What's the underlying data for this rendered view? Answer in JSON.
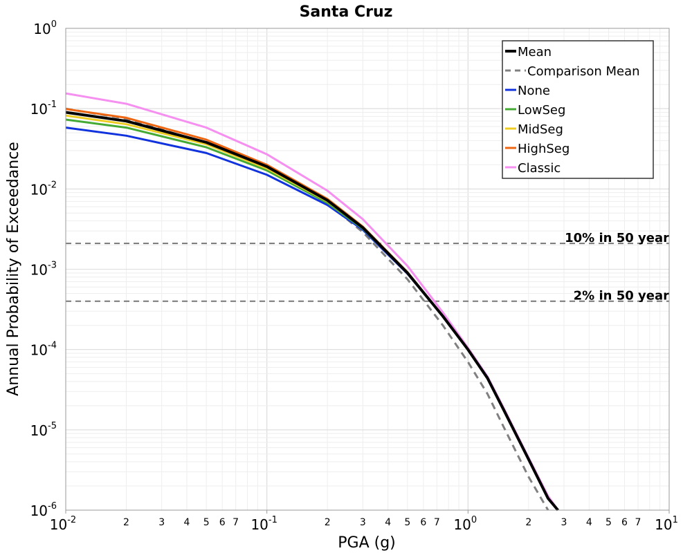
{
  "chart_data": {
    "type": "line",
    "title": "Santa Cruz",
    "xlabel": "PGA (g)",
    "ylabel": "Annual Probability of Exceedance",
    "xscale": "log",
    "yscale": "log",
    "xlim": [
      0.01,
      10
    ],
    "ylim": [
      1e-06,
      1
    ],
    "grid": true,
    "legend_position": "top-right",
    "x_major_ticks": [
      {
        "base": "10",
        "exp": "-2",
        "value": 0.01
      },
      {
        "base": "10",
        "exp": "-1",
        "value": 0.1
      },
      {
        "base": "10",
        "exp": "0",
        "value": 1
      },
      {
        "base": "10",
        "exp": "1",
        "value": 10
      }
    ],
    "x_minor_ticks": [
      {
        "label": "2",
        "value": 0.02
      },
      {
        "label": "3",
        "value": 0.03
      },
      {
        "label": "4",
        "value": 0.04
      },
      {
        "label": "5",
        "value": 0.05
      },
      {
        "label": "6",
        "value": 0.06
      },
      {
        "label": "7",
        "value": 0.07
      },
      {
        "label": "2",
        "value": 0.2
      },
      {
        "label": "3",
        "value": 0.3
      },
      {
        "label": "4",
        "value": 0.4
      },
      {
        "label": "5",
        "value": 0.5
      },
      {
        "label": "6",
        "value": 0.6
      },
      {
        "label": "7",
        "value": 0.7
      },
      {
        "label": "2",
        "value": 2
      },
      {
        "label": "3",
        "value": 3
      },
      {
        "label": "4",
        "value": 4
      },
      {
        "label": "5",
        "value": 5
      },
      {
        "label": "6",
        "value": 6
      },
      {
        "label": "7",
        "value": 7
      }
    ],
    "y_major_ticks": [
      {
        "base": "10",
        "exp": "0",
        "value": 1
      },
      {
        "base": "10",
        "exp": "-1",
        "value": 0.1
      },
      {
        "base": "10",
        "exp": "-2",
        "value": 0.01
      },
      {
        "base": "10",
        "exp": "-3",
        "value": 0.001
      },
      {
        "base": "10",
        "exp": "-4",
        "value": 0.0001
      },
      {
        "base": "10",
        "exp": "-5",
        "value": 1e-05
      },
      {
        "base": "10",
        "exp": "-6",
        "value": 1e-06
      }
    ],
    "reference_lines": [
      {
        "label": "10% in 50 year",
        "y": 0.0021,
        "color": "#777777"
      },
      {
        "label": "2% in 50 year",
        "y": 0.0004,
        "color": "#777777"
      }
    ],
    "series": [
      {
        "name": "Mean",
        "color": "#000000",
        "width": 4,
        "dash": "",
        "x": [
          0.01,
          0.02,
          0.05,
          0.1,
          0.2,
          0.3,
          0.5,
          0.75,
          1.0,
          1.25,
          1.5,
          2.0,
          2.5,
          2.8
        ],
        "y": [
          0.09,
          0.07,
          0.038,
          0.019,
          0.0072,
          0.0033,
          0.0009,
          0.00026,
          0.0001,
          4.4e-05,
          1.8e-05,
          4.3e-06,
          1.4e-06,
          1e-06
        ]
      },
      {
        "name": "Comparison Mean",
        "color": "#808080",
        "width": 3,
        "dash": "10,7",
        "x": [
          0.01,
          0.02,
          0.05,
          0.1,
          0.2,
          0.3,
          0.5,
          0.75,
          1.0,
          1.25,
          1.5,
          2.0,
          2.5
        ],
        "y": [
          0.1,
          0.075,
          0.037,
          0.018,
          0.0066,
          0.0029,
          0.00075,
          0.0002,
          7e-05,
          2.8e-05,
          1.1e-05,
          2.6e-06,
          1e-06
        ]
      },
      {
        "name": "None",
        "color": "#1133dd",
        "width": 3,
        "dash": "",
        "x": [
          0.01,
          0.02,
          0.05,
          0.1,
          0.2,
          0.3,
          0.5,
          0.75,
          1.0,
          1.25,
          1.5,
          2.0,
          2.5,
          2.8
        ],
        "y": [
          0.058,
          0.046,
          0.028,
          0.015,
          0.0063,
          0.0031,
          0.00088,
          0.00026,
          0.0001,
          4.5e-05,
          1.8e-05,
          4.4e-06,
          1.4e-06,
          1e-06
        ]
      },
      {
        "name": "LowSeg",
        "color": "#44aa33",
        "width": 3,
        "dash": "",
        "x": [
          0.01,
          0.02,
          0.05,
          0.1,
          0.2,
          0.3,
          0.5,
          0.75,
          1.0,
          1.25,
          1.5,
          2.0,
          2.5,
          2.8
        ],
        "y": [
          0.073,
          0.058,
          0.033,
          0.017,
          0.0067,
          0.0032,
          0.0009,
          0.00026,
          0.0001,
          4.4e-05,
          1.8e-05,
          4.3e-06,
          1.4e-06,
          1e-06
        ]
      },
      {
        "name": "MidSeg",
        "color": "#eecc22",
        "width": 3,
        "dash": "",
        "x": [
          0.01,
          0.02,
          0.05,
          0.1,
          0.2,
          0.3,
          0.5,
          0.75,
          1.0,
          1.25,
          1.5,
          2.0,
          2.5,
          2.8
        ],
        "y": [
          0.082,
          0.064,
          0.036,
          0.018,
          0.007,
          0.0033,
          0.0009,
          0.00026,
          0.0001,
          4.4e-05,
          1.8e-05,
          4.3e-06,
          1.4e-06,
          1e-06
        ]
      },
      {
        "name": "HighSeg",
        "color": "#ee6611",
        "width": 3,
        "dash": "",
        "x": [
          0.01,
          0.02,
          0.05,
          0.1,
          0.2,
          0.3,
          0.5,
          0.75,
          1.0,
          1.25,
          1.5,
          2.0,
          2.5,
          2.8
        ],
        "y": [
          0.099,
          0.077,
          0.041,
          0.02,
          0.0075,
          0.0034,
          0.00092,
          0.00026,
          0.0001,
          4.4e-05,
          1.8e-05,
          4.3e-06,
          1.4e-06,
          1e-06
        ]
      },
      {
        "name": "Classic",
        "color": "#f58ff0",
        "width": 3,
        "dash": "",
        "x": [
          0.01,
          0.02,
          0.05,
          0.1,
          0.2,
          0.3,
          0.5,
          0.75,
          1.0,
          1.25,
          1.5,
          2.0,
          2.5,
          2.8
        ],
        "y": [
          0.155,
          0.115,
          0.058,
          0.027,
          0.0095,
          0.0042,
          0.0011,
          0.00029,
          0.000105,
          4.6e-05,
          1.9e-05,
          4.5e-06,
          1.5e-06,
          1e-06
        ]
      }
    ]
  }
}
